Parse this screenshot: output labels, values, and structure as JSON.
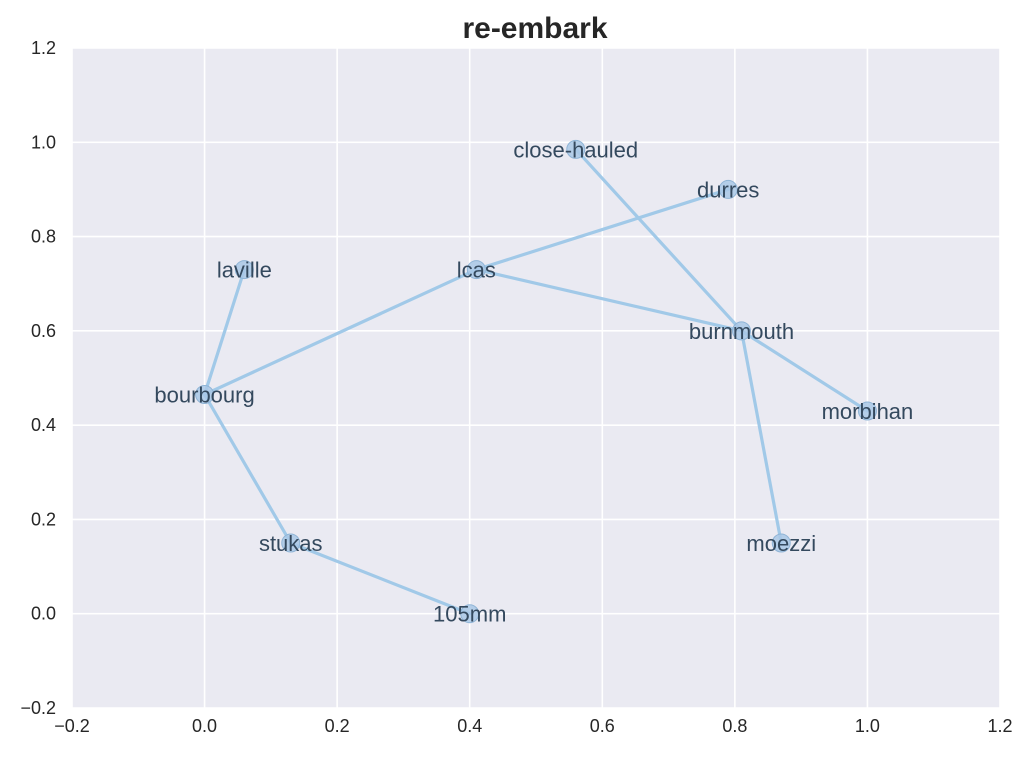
{
  "chart_data": {
    "type": "network",
    "title": "re-embark",
    "xlim": [
      -0.2,
      1.2
    ],
    "ylim": [
      -0.2,
      1.2
    ],
    "xticks": [
      "−0.2",
      "0.0",
      "0.2",
      "0.4",
      "0.6",
      "0.8",
      "1.0",
      "1.2"
    ],
    "yticks": [
      "−0.2",
      "0.0",
      "0.2",
      "0.4",
      "0.6",
      "0.8",
      "1.0",
      "1.2"
    ],
    "xtick_values": [
      -0.2,
      0.0,
      0.2,
      0.4,
      0.6,
      0.8,
      1.0,
      1.2
    ],
    "ytick_values": [
      -0.2,
      0.0,
      0.2,
      0.4,
      0.6,
      0.8,
      1.0,
      1.2
    ],
    "grid": true,
    "nodes": [
      {
        "id": "close-hauled",
        "x": 0.56,
        "y": 0.985
      },
      {
        "id": "durres",
        "x": 0.79,
        "y": 0.9
      },
      {
        "id": "lcas",
        "x": 0.41,
        "y": 0.73
      },
      {
        "id": "laville",
        "x": 0.06,
        "y": 0.73
      },
      {
        "id": "burnmouth",
        "x": 0.81,
        "y": 0.6
      },
      {
        "id": "bourbourg",
        "x": 0.0,
        "y": 0.465
      },
      {
        "id": "morbihan",
        "x": 1.0,
        "y": 0.43
      },
      {
        "id": "stukas",
        "x": 0.13,
        "y": 0.15
      },
      {
        "id": "moezzi",
        "x": 0.87,
        "y": 0.15
      },
      {
        "id": "105mm",
        "x": 0.4,
        "y": 0.0
      }
    ],
    "edges": [
      [
        "close-hauled",
        "burnmouth"
      ],
      [
        "durres",
        "lcas"
      ],
      [
        "lcas",
        "burnmouth"
      ],
      [
        "lcas",
        "bourbourg"
      ],
      [
        "laville",
        "bourbourg"
      ],
      [
        "burnmouth",
        "morbihan"
      ],
      [
        "burnmouth",
        "moezzi"
      ],
      [
        "bourbourg",
        "stukas"
      ],
      [
        "stukas",
        "105mm"
      ]
    ],
    "colors": {
      "background": "#eaeaf2",
      "grid": "#ffffff",
      "edge": "#a1c9e8",
      "node_fill": "#a9c8e6",
      "node_stroke": "#8fb4d6",
      "label": "#34495e"
    }
  }
}
